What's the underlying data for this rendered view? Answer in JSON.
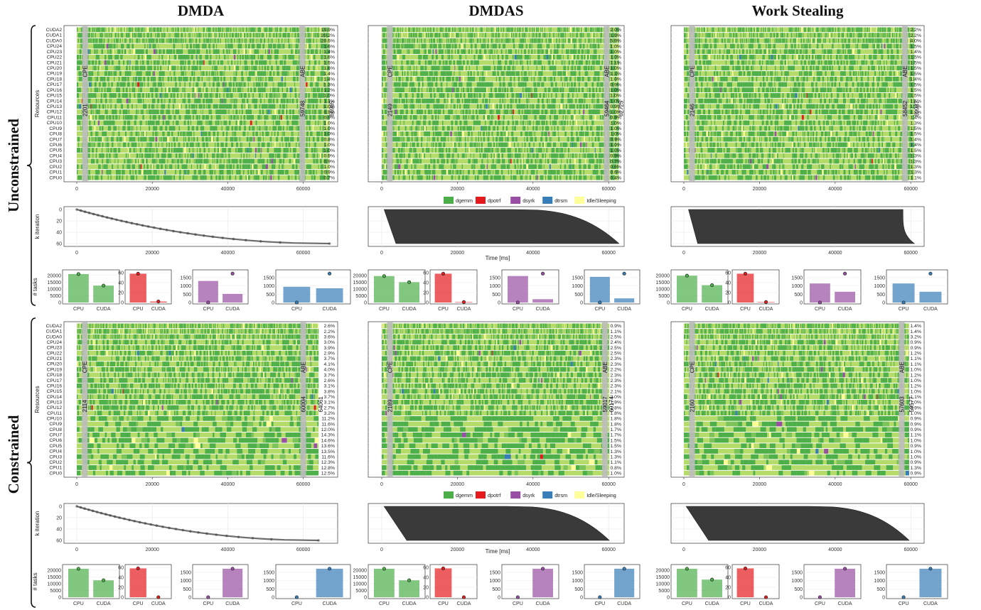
{
  "columns": [
    "DMDA",
    "DMDAS",
    "Work Stealing"
  ],
  "rows": [
    "Unconstrained",
    "Constrained"
  ],
  "legend": [
    {
      "name": "dgemm",
      "color": "#4daf4a"
    },
    {
      "name": "dpotrf",
      "color": "#e41a1c"
    },
    {
      "name": "dsyrk",
      "color": "#984ea3"
    },
    {
      "name": "dtrsm",
      "color": "#377eb8"
    },
    {
      "name": "Idle/Sleeping",
      "color": "#ffff99"
    }
  ],
  "gantt_ylabel": "Resources",
  "kiter_ylabel": "k iteration",
  "time_xlabel": "Time [ms]",
  "bars_ylabel": "# tasks",
  "cpe_label": "CPE",
  "abe_label": "ABE",
  "chart_data": {
    "type": "gantt",
    "resources": [
      "CUDA2",
      "CUDA1",
      "CUDA0",
      "CPU24",
      "CPU23",
      "CPU22",
      "CPU21",
      "CPU20",
      "CPU19",
      "CPU18",
      "CPU17",
      "CPU16",
      "CPU15",
      "CPU14",
      "CPU13",
      "CPU12",
      "CPU11",
      "CPU10",
      "CPU9",
      "CPU8",
      "CPU7",
      "CPU6",
      "CPU5",
      "CPU4",
      "CPU3",
      "CPU2",
      "CPU1",
      "CPU0"
    ],
    "xticks": [
      0,
      20000,
      40000,
      60000
    ],
    "kiter_yticks": [
      0,
      20,
      40,
      60
    ],
    "bar_categories": [
      "CPU",
      "CUDA"
    ],
    "bar_kernels": [
      "dgemm",
      "dpotrf",
      "dsyrk",
      "dtrsm"
    ],
    "panels": [
      {
        "row": "Unconstrained",
        "col": "DMDA",
        "xmax": 66965,
        "cpe": 2201,
        "abe": 59748,
        "end": 66965,
        "pct": [
          "19.9%",
          "20.2%",
          "20.6%",
          "1.6%",
          "1.4%",
          "1.6%",
          "1.5%",
          "1.6%",
          "1.4%",
          "1.4%",
          "1.3%",
          "1.2%",
          "1.0%",
          "1.3%",
          "1.0%",
          "0.9%",
          "0.9%",
          "1.0%",
          "1.0%",
          "1.0%",
          "0.8%",
          "1.0%",
          "1.0%",
          "0.9%",
          "0.9%",
          "1.0%",
          "0.9%",
          "0.7%"
        ],
        "bars": [
          {
            "values": [
              21000,
              12500
            ],
            "ymax": 22000,
            "yticks": [
              0,
              5000,
              10000,
              15000,
              20000
            ]
          },
          {
            "values": [
              58,
              2
            ],
            "ymax": 60,
            "yticks": [
              0,
              20,
              40,
              60
            ]
          },
          {
            "values": [
              1300,
              520
            ],
            "ymax": 1800,
            "yticks": [
              0,
              500,
              1000,
              1500
            ]
          },
          {
            "values": [
              950,
              860
            ],
            "ymax": 1800,
            "yticks": [
              0,
              500,
              1000,
              1500
            ]
          }
        ]
      },
      {
        "row": "Unconstrained",
        "col": "DMDAS",
        "xmax": 62725,
        "cpe": 2149,
        "abe": 59464,
        "end": 62725,
        "pct": [
          "2.0%",
          "1.9%",
          "5.9%",
          "1.0%",
          "1.0%",
          "1.0%",
          "1.1%",
          "1.0%",
          "1.1%",
          "1.0%",
          "0.9%",
          "1.0%",
          "1.0%",
          "1.0%",
          "0.9%",
          "1.0%",
          "0.9%",
          "1.0%",
          "1.0%",
          "1.0%",
          "0.9%",
          "1.0%",
          "1.0%",
          "0.9%",
          "0.7%",
          "0.6%",
          "0.6%",
          "0.4%"
        ],
        "bars": [
          {
            "values": [
              19500,
              15000
            ],
            "ymax": 22000,
            "yticks": [
              0,
              5000,
              10000,
              15000,
              20000
            ]
          },
          {
            "values": [
              58,
              1
            ],
            "ymax": 60,
            "yticks": [
              0,
              20,
              40,
              60
            ]
          },
          {
            "values": [
              1600,
              200
            ],
            "ymax": 1800,
            "yticks": [
              0,
              500,
              1000,
              1500
            ]
          },
          {
            "values": [
              1550,
              250
            ],
            "ymax": 1800,
            "yticks": [
              0,
              500,
              1000,
              1500
            ]
          }
        ]
      },
      {
        "row": "Unconstrained",
        "col": "Work Stealing",
        "xmax": 60987,
        "cpe": 2146,
        "abe": 58452,
        "end": 60987,
        "pct": [
          "2.2%",
          "2.2%",
          "4.0%",
          "1.5%",
          "1.4%",
          "1.5%",
          "1.5%",
          "1.5%",
          "1.5%",
          "1.4%",
          "1.5%",
          "1.5%",
          "1.5%",
          "1.5%",
          "1.3%",
          "1.2%",
          "1.4%",
          "1.3%",
          "1.5%",
          "1.5%",
          "1.4%",
          "1.4%",
          "1.5%",
          "1.3%",
          "1.3%",
          "1.3%",
          "1.3%",
          "1.1%"
        ],
        "bars": [
          {
            "values": [
              19800,
              12800
            ],
            "ymax": 22000,
            "yticks": [
              0,
              5000,
              10000,
              15000,
              20000
            ]
          },
          {
            "values": [
              58,
              1
            ],
            "ymax": 60,
            "yticks": [
              0,
              20,
              40,
              60
            ]
          },
          {
            "values": [
              1150,
              650
            ],
            "ymax": 1800,
            "yticks": [
              0,
              500,
              1000,
              1500
            ]
          },
          {
            "values": [
              1150,
              650
            ],
            "ymax": 1800,
            "yticks": [
              0,
              500,
              1000,
              1500
            ]
          }
        ]
      },
      {
        "row": "Constrained",
        "col": "DMDA",
        "xmax": 64061,
        "cpe": 2114,
        "abe": 60004,
        "end": 64061,
        "pct": [
          "2.6%",
          "2.2%",
          "3.6%",
          "3.0%",
          "3.9%",
          "2.9%",
          "3.7%",
          "4.1%",
          "4.0%",
          "3.7%",
          "2.6%",
          "3.1%",
          "3.8%",
          "3.7%",
          "3.1%",
          "2.7%",
          "3.2%",
          "11.2%",
          "11.6%",
          "12.0%",
          "14.3%",
          "14.6%",
          "13.6%",
          "13.5%",
          "11.6%",
          "12.3%",
          "12.8%",
          "12.5%"
        ],
        "bars": [
          {
            "values": [
              21000,
              12500
            ],
            "ymax": 22000,
            "yticks": [
              0,
              5000,
              10000,
              15000,
              20000
            ]
          },
          {
            "values": [
              58,
              0
            ],
            "ymax": 60,
            "yticks": [
              0,
              20,
              40,
              60
            ]
          },
          {
            "values": [
              0,
              1720
            ],
            "ymax": 1800,
            "yticks": [
              0,
              500,
              1000,
              1500
            ]
          },
          {
            "values": [
              0,
              1720
            ],
            "ymax": 1800,
            "yticks": [
              0,
              500,
              1000,
              1500
            ]
          }
        ]
      },
      {
        "row": "Constrained",
        "col": "DMDAS",
        "xmax": 60174,
        "cpe": 2189,
        "abe": 59017,
        "end": 60174,
        "pct": [
          "0.9%",
          "1.1%",
          "2.5%",
          "2.4%",
          "2.5%",
          "2.5%",
          "2.3%",
          "2.3%",
          "2.2%",
          "2.3%",
          "2.3%",
          "2.3%",
          "2.1%",
          "2.0%",
          "1.9%",
          "1.8%",
          "1.8%",
          "1.8%",
          "1.8%",
          "1.7%",
          "1.7%",
          "1.5%",
          "1.5%",
          "1.3%",
          "1.3%",
          "1.1%",
          "0.8%",
          "1.0%"
        ],
        "bars": [
          {
            "values": [
              21000,
              12500
            ],
            "ymax": 22000,
            "yticks": [
              0,
              5000,
              10000,
              15000,
              20000
            ]
          },
          {
            "values": [
              58,
              0
            ],
            "ymax": 60,
            "yticks": [
              0,
              20,
              40,
              60
            ]
          },
          {
            "values": [
              0,
              1720
            ],
            "ymax": 1800,
            "yticks": [
              0,
              500,
              1000,
              1500
            ]
          },
          {
            "values": [
              0,
              1720
            ],
            "ymax": 1800,
            "yticks": [
              0,
              500,
              1000,
              1500
            ]
          }
        ]
      },
      {
        "row": "Constrained",
        "col": "Work Stealing",
        "xmax": 59577,
        "cpe": 2160,
        "abe": 57603,
        "end": 59577,
        "pct": [
          "1.4%",
          "1.4%",
          "3.2%",
          "0.9%",
          "0.9%",
          "1.2%",
          "1.1%",
          "1.1%",
          "1.0%",
          "1.2%",
          "1.0%",
          "1.2%",
          "1.0%",
          "1.1%",
          "1.0%",
          "0.9%",
          "1.0%",
          "0.9%",
          "0.9%",
          "0.9%",
          "1.1%",
          "1.0%",
          "0.9%",
          "1.0%",
          "1.0%",
          "0.9%",
          "1.3%",
          "0.9%"
        ],
        "bars": [
          {
            "values": [
              21000,
              13000
            ],
            "ymax": 22000,
            "yticks": [
              0,
              5000,
              10000,
              15000,
              20000
            ]
          },
          {
            "values": [
              58,
              0
            ],
            "ymax": 60,
            "yticks": [
              0,
              20,
              40,
              60
            ]
          },
          {
            "values": [
              0,
              1720
            ],
            "ymax": 1800,
            "yticks": [
              0,
              500,
              1000,
              1500
            ]
          },
          {
            "values": [
              0,
              1720
            ],
            "ymax": 1800,
            "yticks": [
              0,
              500,
              1000,
              1500
            ]
          }
        ]
      }
    ]
  }
}
